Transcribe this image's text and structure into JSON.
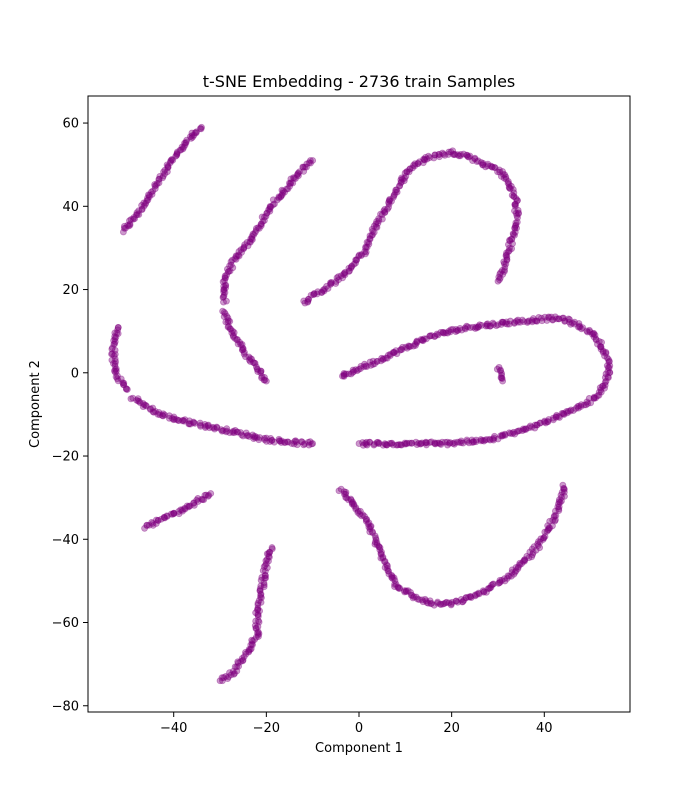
{
  "chart_data": {
    "type": "scatter",
    "title": "t-SNE Embedding - 2736 train Samples",
    "xlabel": "Component 1",
    "ylabel": "Component 2",
    "xlim": [
      -58.5,
      58.5
    ],
    "ylim": [
      -81.5,
      66.5
    ],
    "xticks": [
      -40,
      -20,
      0,
      20,
      40
    ],
    "yticks": [
      -80,
      -60,
      -40,
      -20,
      0,
      20,
      40,
      60
    ],
    "grid": false,
    "legend": "none",
    "marker_color": "#800080",
    "marker_alpha": 0.4,
    "series": [
      {
        "clusters": [
          [
            [
              -51,
              34
            ],
            [
              -48,
              38
            ],
            [
              -45,
              43
            ],
            [
              -42,
              48
            ],
            [
              -39,
              53
            ],
            [
              -36,
              57
            ],
            [
              -34,
              59
            ]
          ],
          [
            [
              -29,
              17
            ],
            [
              -29,
              23
            ],
            [
              -27,
              27
            ],
            [
              -24,
              31
            ],
            [
              -21,
              36
            ],
            [
              -19,
              40
            ],
            [
              -16,
              44
            ],
            [
              -13,
              48
            ],
            [
              -10,
              51
            ]
          ],
          [
            [
              -29,
              15
            ],
            [
              -28,
              11
            ],
            [
              -26,
              7
            ],
            [
              -24,
              4
            ],
            [
              -22,
              1
            ],
            [
              -20,
              -2
            ]
          ],
          [
            [
              -12,
              17
            ],
            [
              -9,
              19
            ],
            [
              -5,
              22
            ],
            [
              -2,
              25
            ],
            [
              1,
              29
            ],
            [
              3,
              34
            ],
            [
              5,
              38
            ],
            [
              7,
              42
            ],
            [
              9,
              46
            ],
            [
              12,
              50
            ],
            [
              16,
              52
            ],
            [
              20,
              53
            ],
            [
              24,
              52
            ],
            [
              27,
              50
            ],
            [
              30,
              49
            ],
            [
              32,
              46
            ],
            [
              34,
              42
            ],
            [
              34,
              37
            ],
            [
              33,
              32
            ],
            [
              32,
              28
            ],
            [
              31,
              24
            ],
            [
              30,
              22
            ]
          ],
          [
            [
              -52,
              11
            ],
            [
              -53,
              7
            ],
            [
              -53,
              3
            ],
            [
              -52,
              -1
            ],
            [
              -50,
              -4
            ]
          ],
          [
            [
              -49,
              -6
            ],
            [
              -46,
              -8
            ],
            [
              -43,
              -10
            ],
            [
              -40,
              -11
            ],
            [
              -36,
              -12
            ],
            [
              -32,
              -13
            ],
            [
              -28,
              -14
            ],
            [
              -24,
              -15
            ],
            [
              -20,
              -16
            ],
            [
              -16,
              -16.5
            ],
            [
              -12,
              -17
            ],
            [
              -10,
              -17
            ]
          ],
          [
            [
              -4,
              -1
            ],
            [
              0,
              1
            ],
            [
              4,
              3
            ],
            [
              8,
              5
            ],
            [
              12,
              7
            ],
            [
              16,
              9
            ],
            [
              20,
              10
            ],
            [
              24,
              11
            ],
            [
              28,
              11.5
            ],
            [
              32,
              12
            ],
            [
              36,
              12.5
            ],
            [
              40,
              13
            ],
            [
              44,
              13
            ],
            [
              48,
              11
            ],
            [
              51,
              9
            ],
            [
              53,
              5
            ],
            [
              54,
              1
            ],
            [
              53,
              -3
            ],
            [
              51,
              -6
            ],
            [
              48,
              -8
            ],
            [
              44,
              -10
            ],
            [
              40,
              -12
            ],
            [
              36,
              -13.5
            ],
            [
              32,
              -15
            ],
            [
              28,
              -16
            ],
            [
              24,
              -16.5
            ],
            [
              20,
              -17
            ],
            [
              16,
              -17
            ],
            [
              12,
              -17
            ],
            [
              8,
              -17
            ],
            [
              4,
              -17
            ],
            [
              0,
              -17
            ]
          ],
          [
            [
              30,
              1
            ],
            [
              31,
              -1
            ],
            [
              31,
              -2
            ]
          ],
          [
            [
              -46,
              -37
            ],
            [
              -42,
              -35
            ],
            [
              -38,
              -33
            ],
            [
              -35,
              -31
            ],
            [
              -32,
              -29
            ]
          ],
          [
            [
              -19,
              -42
            ],
            [
              -20,
              -46
            ],
            [
              -21,
              -52
            ],
            [
              -22,
              -58
            ],
            [
              -22,
              -63
            ],
            [
              -24,
              -67
            ],
            [
              -26,
              -70
            ],
            [
              -28,
              -73
            ],
            [
              -30,
              -74
            ]
          ],
          [
            [
              -4,
              -28
            ],
            [
              -1,
              -32
            ],
            [
              2,
              -36
            ],
            [
              4,
              -42
            ],
            [
              6,
              -47
            ],
            [
              8,
              -51
            ],
            [
              12,
              -54
            ],
            [
              16,
              -55.5
            ],
            [
              20,
              -55.5
            ],
            [
              24,
              -54
            ],
            [
              28,
              -52
            ],
            [
              32,
              -49
            ],
            [
              36,
              -45
            ],
            [
              39,
              -41
            ],
            [
              41,
              -37
            ],
            [
              43,
              -33
            ],
            [
              44,
              -29
            ],
            [
              44,
              -27
            ]
          ]
        ]
      }
    ]
  }
}
